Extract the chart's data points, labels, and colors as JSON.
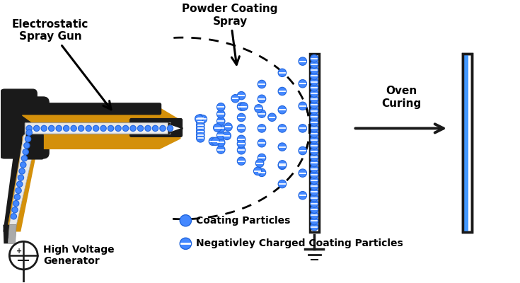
{
  "bg_color": "#ffffff",
  "gun_body_color": "#1a1a1a",
  "gun_gold_color": "#d4900a",
  "gun_gray_color": "#c8c8c8",
  "gun_lightgray_color": "#e8e8e8",
  "particle_color": "#4488ff",
  "particle_edge_color": "#2266dd",
  "plate_color": "#1a1a1a",
  "blue_coat_color": "#4499ff",
  "text_color": "#000000",
  "title_fontsize": 11,
  "label_fontsize": 10,
  "legend_fontsize": 10,
  "labels": {
    "spray_gun": "Electrostatic\nSpray Gun",
    "spray": "Powder Coating\nSpray",
    "oven": "Oven\nCuring",
    "hvg": "High Voltage\nGenerator",
    "legend1": "Coating Particles",
    "legend2": "Negativley Charged Coating Particles"
  }
}
